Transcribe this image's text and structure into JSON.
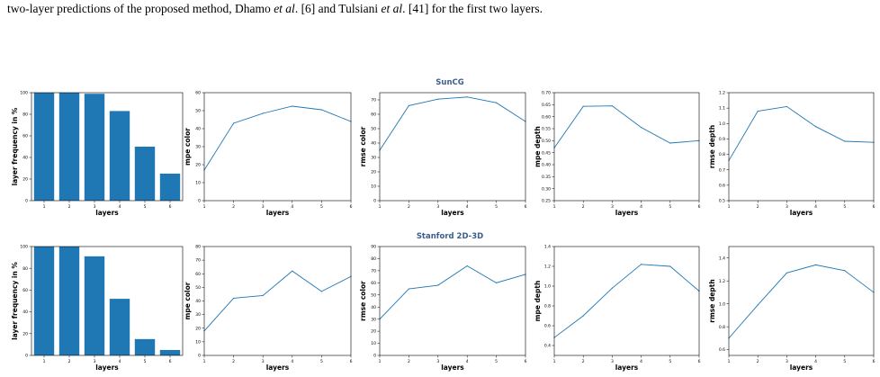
{
  "caption": {
    "prefix": "two-layer predictions of the proposed method, Dhamo ",
    "etal1": "et al",
    "mid1": ". [6] and Tulsiani ",
    "etal2": "et al",
    "suffix": ". [41] for the first two layers."
  },
  "colors": {
    "series": "#1f77b4",
    "group_title": "#3d5c8c"
  },
  "chart_data": [
    {
      "type": "bar",
      "group": "SunCG",
      "categories": [
        "1",
        "2",
        "3",
        "4",
        "5",
        "6"
      ],
      "values": [
        100,
        100,
        99,
        83,
        50,
        25
      ],
      "xlabel": "layers",
      "ylabel": "layer frequency in %",
      "ylim": [
        0,
        100
      ],
      "yticks": [
        0,
        20,
        40,
        60,
        80,
        100
      ]
    },
    {
      "type": "line",
      "x": [
        1,
        2,
        3,
        4,
        5,
        6
      ],
      "values": [
        17,
        43,
        48.5,
        52.5,
        50.5,
        44
      ],
      "xlabel": "layers",
      "ylabel": "mpe color",
      "ylim": [
        0,
        60
      ],
      "yticks": [
        0,
        10,
        20,
        30,
        40,
        50,
        60
      ]
    },
    {
      "type": "line",
      "x": [
        1,
        2,
        3,
        4,
        5,
        6
      ],
      "values": [
        35,
        66,
        70.5,
        72,
        68,
        55
      ],
      "xlabel": "layers",
      "ylabel": "rmse color",
      "ylim": [
        0,
        75
      ],
      "yticks": [
        0,
        10,
        20,
        30,
        40,
        50,
        60,
        70
      ]
    },
    {
      "type": "line",
      "x": [
        1,
        2,
        3,
        4,
        5,
        6
      ],
      "values": [
        0.47,
        0.643,
        0.645,
        0.555,
        0.49,
        0.5
      ],
      "xlabel": "layers",
      "ylabel": "mpe depth",
      "ylim": [
        0.25,
        0.7
      ],
      "yticks": [
        0.25,
        0.3,
        0.35,
        0.4,
        0.45,
        0.5,
        0.55,
        0.6,
        0.65,
        0.7
      ],
      "decimals": 2
    },
    {
      "type": "line",
      "x": [
        1,
        2,
        3,
        4,
        5,
        6
      ],
      "values": [
        0.76,
        1.08,
        1.11,
        0.98,
        0.885,
        0.878
      ],
      "xlabel": "layers",
      "ylabel": "rmse depth",
      "ylim": [
        0.5,
        1.2
      ],
      "yticks": [
        0.5,
        0.6,
        0.7,
        0.8,
        0.9,
        1.0,
        1.1,
        1.2
      ],
      "decimals": 1
    },
    {
      "type": "bar",
      "group": "Stanford 2D-3D",
      "categories": [
        "1",
        "2",
        "3",
        "4",
        "5",
        "6"
      ],
      "values": [
        100,
        100,
        91,
        52,
        15,
        5
      ],
      "xlabel": "layers",
      "ylabel": "layer frequency in %",
      "ylim": [
        0,
        100
      ],
      "yticks": [
        0,
        20,
        40,
        60,
        80,
        100
      ]
    },
    {
      "type": "line",
      "x": [
        1,
        2,
        3,
        4,
        5,
        6
      ],
      "values": [
        18,
        42,
        44,
        62,
        47,
        58
      ],
      "xlabel": "layers",
      "ylabel": "mpe color",
      "ylim": [
        0,
        80
      ],
      "yticks": [
        0,
        10,
        20,
        30,
        40,
        50,
        60,
        70,
        80
      ]
    },
    {
      "type": "line",
      "x": [
        1,
        2,
        3,
        4,
        5,
        6
      ],
      "values": [
        30,
        55,
        58,
        74,
        60,
        67
      ],
      "xlabel": "layers",
      "ylabel": "rmse color",
      "ylim": [
        0,
        90
      ],
      "yticks": [
        0,
        10,
        20,
        30,
        40,
        50,
        60,
        70,
        80,
        90
      ]
    },
    {
      "type": "line",
      "x": [
        1,
        2,
        3,
        4,
        5,
        6
      ],
      "values": [
        0.48,
        0.7,
        0.98,
        1.22,
        1.2,
        0.95
      ],
      "xlabel": "layers",
      "ylabel": "mpe depth",
      "ylim": [
        0.3,
        1.4
      ],
      "yticks": [
        0.4,
        0.6,
        0.8,
        1.0,
        1.2,
        1.4
      ],
      "decimals": 1
    },
    {
      "type": "line",
      "x": [
        1,
        2,
        3,
        4,
        5,
        6
      ],
      "values": [
        0.7,
        0.99,
        1.27,
        1.34,
        1.29,
        1.1
      ],
      "xlabel": "layers",
      "ylabel": "rmse depth",
      "ylim": [
        0.55,
        1.5
      ],
      "yticks": [
        0.6,
        0.8,
        1.0,
        1.2,
        1.4
      ],
      "decimals": 1
    }
  ]
}
